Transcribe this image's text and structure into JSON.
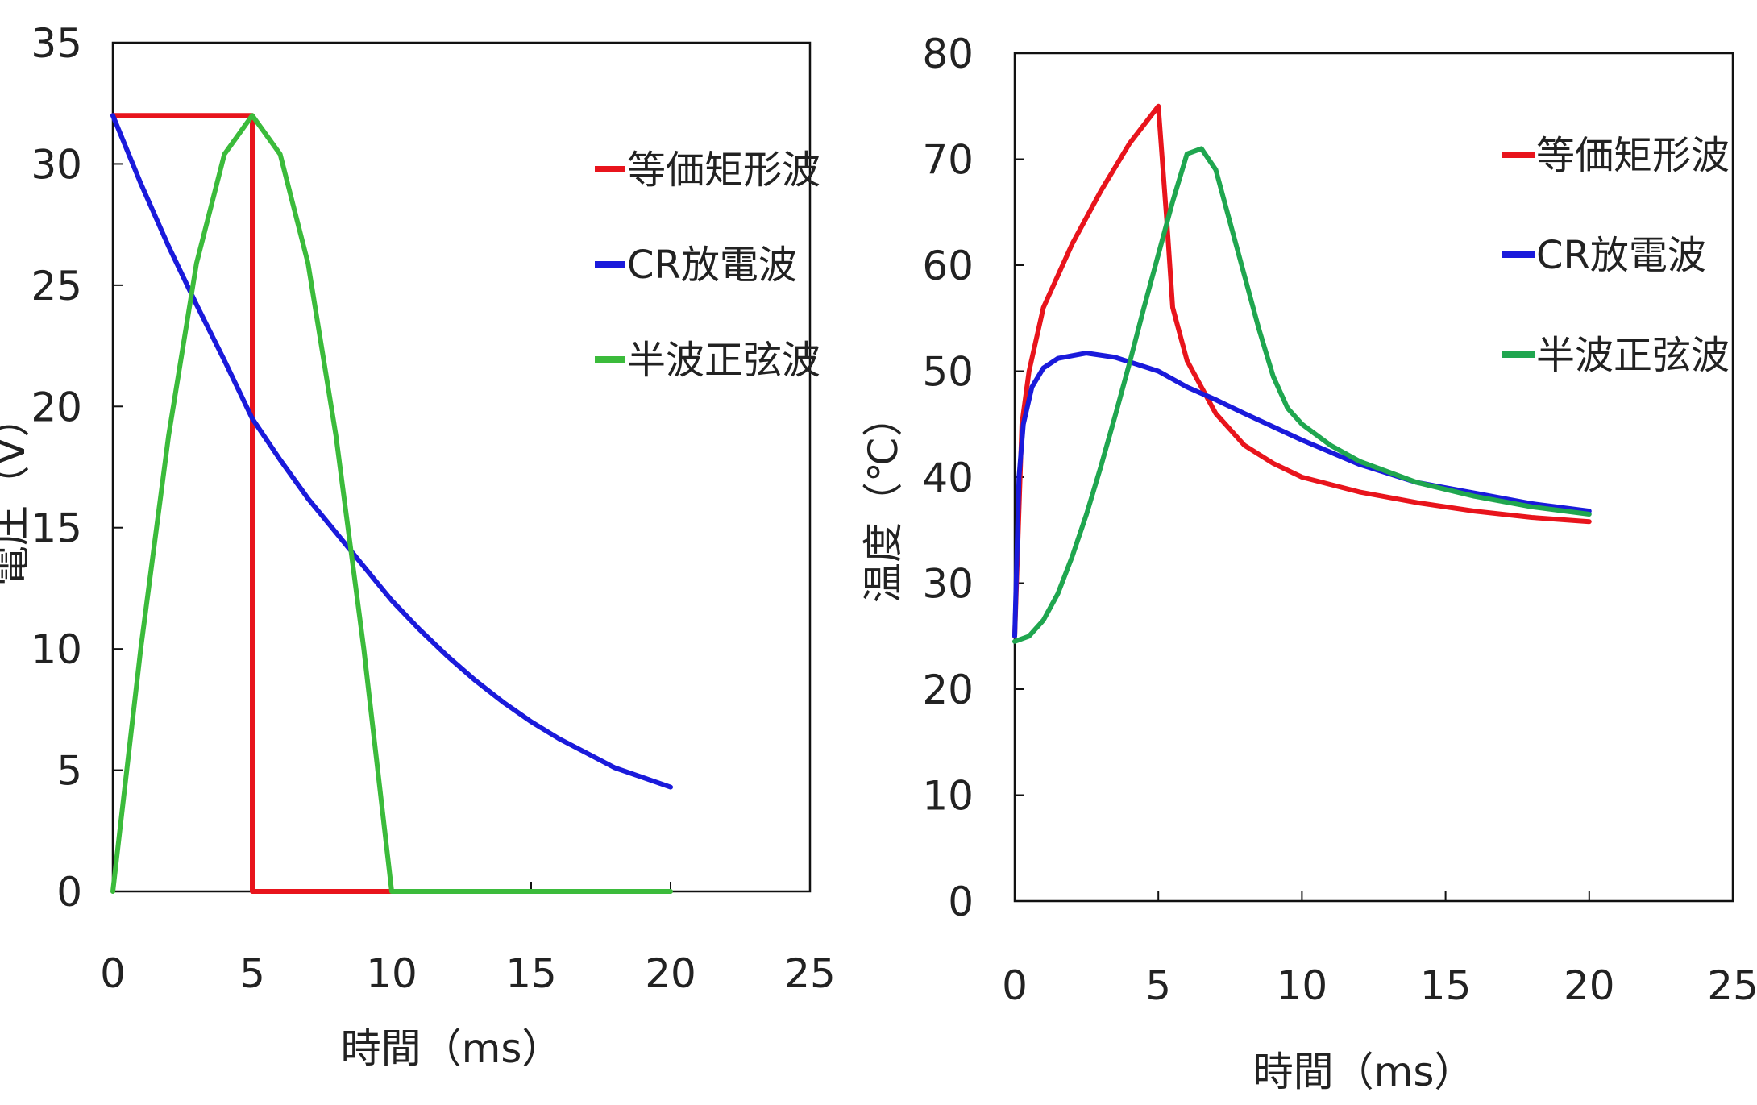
{
  "chart_data": [
    {
      "type": "line",
      "title": "",
      "xlabel": "時間（ms）",
      "ylabel": "電圧（V）",
      "xlim": [
        0,
        25
      ],
      "ylim": [
        0,
        35
      ],
      "xticks": [
        0,
        5,
        10,
        15,
        20,
        25
      ],
      "yticks": [
        0,
        5,
        10,
        15,
        20,
        25,
        30,
        35
      ],
      "grid": false,
      "legend_position": "right",
      "series": [
        {
          "name": "等価矩形波",
          "color": "#e8141c",
          "points": [
            [
              0,
              32
            ],
            [
              5,
              32
            ],
            [
              5,
              0
            ],
            [
              10,
              0
            ]
          ]
        },
        {
          "name": "CR放電波",
          "color": "#1a1adb",
          "points": [
            [
              0,
              32
            ],
            [
              1,
              29.2
            ],
            [
              2,
              26.6
            ],
            [
              3,
              24.2
            ],
            [
              4,
              21.9
            ],
            [
              5,
              19.5
            ],
            [
              6,
              17.8
            ],
            [
              7,
              16.2
            ],
            [
              8,
              14.8
            ],
            [
              9,
              13.4
            ],
            [
              10,
              12
            ],
            [
              11,
              10.8
            ],
            [
              12,
              9.7
            ],
            [
              13,
              8.7
            ],
            [
              14,
              7.8
            ],
            [
              15,
              7
            ],
            [
              16,
              6.3
            ],
            [
              17,
              5.7
            ],
            [
              18,
              5.1
            ],
            [
              19,
              4.7
            ],
            [
              20,
              4.3
            ]
          ]
        },
        {
          "name": "半波正弦波",
          "color": "#3bbb3b",
          "points": [
            [
              0,
              0
            ],
            [
              1,
              10
            ],
            [
              2,
              18.8
            ],
            [
              3,
              25.9
            ],
            [
              4,
              30.4
            ],
            [
              5,
              32
            ],
            [
              6,
              30.4
            ],
            [
              7,
              25.9
            ],
            [
              8,
              18.8
            ],
            [
              9,
              10
            ],
            [
              10,
              0
            ],
            [
              20,
              0
            ]
          ]
        }
      ]
    },
    {
      "type": "line",
      "title": "",
      "xlabel": "時間（ms）",
      "ylabel": "温度（℃）",
      "xlim": [
        0,
        25
      ],
      "ylim": [
        0,
        80
      ],
      "xticks": [
        0,
        5,
        10,
        15,
        20,
        25
      ],
      "yticks": [
        0,
        10,
        20,
        30,
        40,
        50,
        60,
        70,
        80
      ],
      "grid": false,
      "legend_position": "top-right",
      "series": [
        {
          "name": "等価矩形波",
          "color": "#e8141c",
          "points": [
            [
              0,
              25
            ],
            [
              0.25,
              45
            ],
            [
              0.5,
              50
            ],
            [
              1,
              56
            ],
            [
              2,
              62
            ],
            [
              3,
              67
            ],
            [
              4,
              71.5
            ],
            [
              5,
              75
            ],
            [
              5.3,
              64
            ],
            [
              5.5,
              56
            ],
            [
              6,
              51
            ],
            [
              7,
              46
            ],
            [
              8,
              43
            ],
            [
              9,
              41.3
            ],
            [
              10,
              40
            ],
            [
              12,
              38.6
            ],
            [
              14,
              37.6
            ],
            [
              16,
              36.8
            ],
            [
              18,
              36.2
            ],
            [
              20,
              35.8
            ]
          ]
        },
        {
          "name": "CR放電波",
          "color": "#1a1adb",
          "points": [
            [
              0,
              25
            ],
            [
              0.15,
              40
            ],
            [
              0.3,
              45
            ],
            [
              0.6,
              48.5
            ],
            [
              1,
              50.3
            ],
            [
              1.5,
              51.2
            ],
            [
              2.5,
              51.7
            ],
            [
              3.5,
              51.3
            ],
            [
              5,
              50
            ],
            [
              6,
              48.5
            ],
            [
              7,
              47.3
            ],
            [
              8,
              46
            ],
            [
              10,
              43.5
            ],
            [
              12,
              41.2
            ],
            [
              14,
              39.5
            ],
            [
              16,
              38.5
            ],
            [
              18,
              37.5
            ],
            [
              20,
              36.8
            ]
          ]
        },
        {
          "name": "半波正弦波",
          "color": "#1fa64f",
          "points": [
            [
              0,
              24.5
            ],
            [
              0.5,
              25
            ],
            [
              1,
              26.5
            ],
            [
              1.5,
              29
            ],
            [
              2,
              32.5
            ],
            [
              2.5,
              36.5
            ],
            [
              3,
              41
            ],
            [
              3.5,
              45.8
            ],
            [
              4,
              50.8
            ],
            [
              4.5,
              56
            ],
            [
              5,
              61
            ],
            [
              5.5,
              66
            ],
            [
              6,
              70.5
            ],
            [
              6.5,
              71
            ],
            [
              7,
              69
            ],
            [
              7.5,
              64
            ],
            [
              8,
              59
            ],
            [
              8.5,
              54
            ],
            [
              9,
              49.5
            ],
            [
              9.5,
              46.5
            ],
            [
              10,
              45
            ],
            [
              11,
              43
            ],
            [
              12,
              41.5
            ],
            [
              14,
              39.5
            ],
            [
              16,
              38.2
            ],
            [
              18,
              37.2
            ],
            [
              20,
              36.5
            ]
          ]
        }
      ]
    }
  ]
}
